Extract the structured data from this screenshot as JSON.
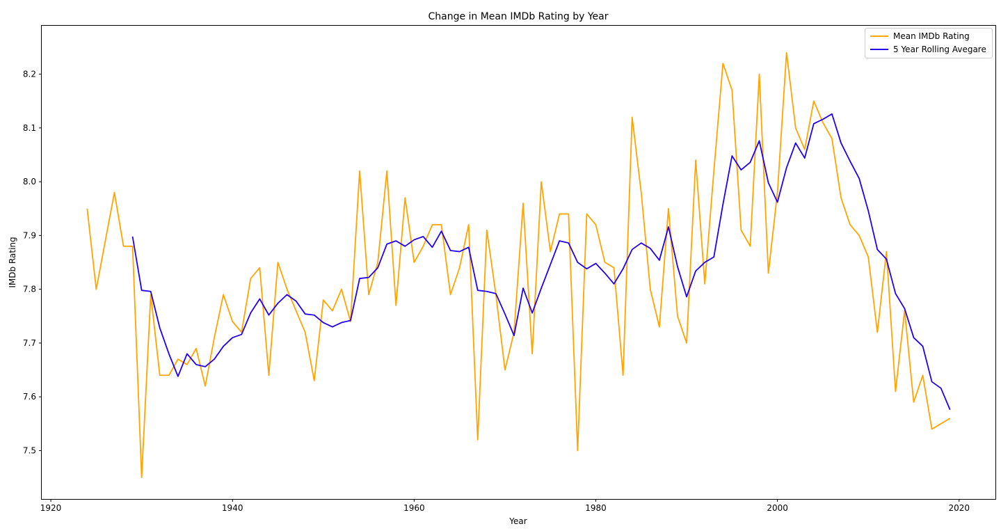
{
  "chart_data": {
    "type": "line",
    "title": "Change in Mean IMDb Rating by Year",
    "xlabel": "Year",
    "ylabel": "IMDb Rating",
    "xlim": [
      1919,
      2024
    ],
    "ylim": [
      7.41,
      8.29
    ],
    "xticks": [
      1920,
      1940,
      1960,
      1980,
      2000,
      2020
    ],
    "yticks": [
      7.5,
      7.6,
      7.7,
      7.8,
      7.9,
      8.0,
      8.1,
      8.2
    ],
    "grid": false,
    "legend_position": "top-right",
    "series": [
      {
        "name": "Mean IMDb Rating",
        "color": "#FFA500",
        "points": [
          [
            1924,
            7.95
          ],
          [
            1925,
            7.8
          ],
          [
            1926,
            7.89
          ],
          [
            1927,
            7.98
          ],
          [
            1928,
            7.88
          ],
          [
            1929,
            7.88
          ],
          [
            1930,
            7.45
          ],
          [
            1931,
            7.79
          ],
          [
            1932,
            7.64
          ],
          [
            1933,
            7.64
          ],
          [
            1934,
            7.67
          ],
          [
            1935,
            7.66
          ],
          [
            1936,
            7.69
          ],
          [
            1937,
            7.62
          ],
          [
            1938,
            7.71
          ],
          [
            1939,
            7.79
          ],
          [
            1940,
            7.74
          ],
          [
            1941,
            7.72
          ],
          [
            1942,
            7.82
          ],
          [
            1943,
            7.84
          ],
          [
            1944,
            7.64
          ],
          [
            1945,
            7.85
          ],
          [
            1946,
            7.8
          ],
          [
            1947,
            7.76
          ],
          [
            1948,
            7.72
          ],
          [
            1949,
            7.63
          ],
          [
            1950,
            7.78
          ],
          [
            1951,
            7.76
          ],
          [
            1952,
            7.8
          ],
          [
            1953,
            7.74
          ],
          [
            1954,
            8.02
          ],
          [
            1955,
            7.79
          ],
          [
            1956,
            7.85
          ],
          [
            1957,
            8.02
          ],
          [
            1958,
            7.77
          ],
          [
            1959,
            7.97
          ],
          [
            1960,
            7.85
          ],
          [
            1961,
            7.88
          ],
          [
            1962,
            7.92
          ],
          [
            1963,
            7.92
          ],
          [
            1964,
            7.79
          ],
          [
            1965,
            7.84
          ],
          [
            1966,
            7.92
          ],
          [
            1967,
            7.52
          ],
          [
            1968,
            7.91
          ],
          [
            1969,
            7.79
          ],
          [
            1970,
            7.65
          ],
          [
            1971,
            7.72
          ],
          [
            1972,
            7.96
          ],
          [
            1973,
            7.68
          ],
          [
            1974,
            8.0
          ],
          [
            1975,
            7.87
          ],
          [
            1976,
            7.94
          ],
          [
            1977,
            7.94
          ],
          [
            1978,
            7.5
          ],
          [
            1979,
            7.94
          ],
          [
            1980,
            7.92
          ],
          [
            1981,
            7.85
          ],
          [
            1982,
            7.84
          ],
          [
            1983,
            7.64
          ],
          [
            1984,
            8.12
          ],
          [
            1985,
            7.98
          ],
          [
            1986,
            7.8
          ],
          [
            1987,
            7.73
          ],
          [
            1988,
            7.95
          ],
          [
            1989,
            7.75
          ],
          [
            1990,
            7.7
          ],
          [
            1991,
            8.04
          ],
          [
            1992,
            7.81
          ],
          [
            1993,
            8.02
          ],
          [
            1994,
            8.22
          ],
          [
            1995,
            8.17
          ],
          [
            1996,
            7.91
          ],
          [
            1997,
            7.88
          ],
          [
            1998,
            8.2
          ],
          [
            1999,
            7.83
          ],
          [
            2000,
            7.98
          ],
          [
            2001,
            8.24
          ],
          [
            2002,
            8.1
          ],
          [
            2003,
            8.06
          ],
          [
            2004,
            8.15
          ],
          [
            2005,
            8.11
          ],
          [
            2006,
            8.08
          ],
          [
            2007,
            7.97
          ],
          [
            2008,
            7.92
          ],
          [
            2009,
            7.9
          ],
          [
            2010,
            7.86
          ],
          [
            2011,
            7.72
          ],
          [
            2012,
            7.87
          ],
          [
            2013,
            7.61
          ],
          [
            2014,
            7.76
          ],
          [
            2015,
            7.59
          ],
          [
            2016,
            7.64
          ],
          [
            2017,
            7.54
          ],
          [
            2019,
            7.56
          ]
        ]
      },
      {
        "name": "5 Year Rolling Avegare",
        "color": "#2200EE",
        "points": [
          [
            1929,
            7.898
          ],
          [
            1930,
            7.798
          ],
          [
            1931,
            7.796
          ],
          [
            1932,
            7.728
          ],
          [
            1933,
            7.68
          ],
          [
            1934,
            7.638
          ],
          [
            1935,
            7.68
          ],
          [
            1936,
            7.66
          ],
          [
            1937,
            7.656
          ],
          [
            1938,
            7.67
          ],
          [
            1939,
            7.694
          ],
          [
            1940,
            7.71
          ],
          [
            1941,
            7.716
          ],
          [
            1942,
            7.756
          ],
          [
            1943,
            7.782
          ],
          [
            1944,
            7.752
          ],
          [
            1945,
            7.774
          ],
          [
            1946,
            7.79
          ],
          [
            1947,
            7.778
          ],
          [
            1948,
            7.754
          ],
          [
            1949,
            7.752
          ],
          [
            1950,
            7.738
          ],
          [
            1951,
            7.73
          ],
          [
            1952,
            7.738
          ],
          [
            1953,
            7.742
          ],
          [
            1954,
            7.82
          ],
          [
            1955,
            7.822
          ],
          [
            1956,
            7.84
          ],
          [
            1957,
            7.884
          ],
          [
            1958,
            7.89
          ],
          [
            1959,
            7.88
          ],
          [
            1960,
            7.892
          ],
          [
            1961,
            7.898
          ],
          [
            1962,
            7.878
          ],
          [
            1963,
            7.908
          ],
          [
            1964,
            7.872
          ],
          [
            1965,
            7.87
          ],
          [
            1966,
            7.878
          ],
          [
            1967,
            7.798
          ],
          [
            1968,
            7.796
          ],
          [
            1969,
            7.792
          ],
          [
            1970,
            7.754
          ],
          [
            1971,
            7.714
          ],
          [
            1972,
            7.802
          ],
          [
            1973,
            7.756
          ],
          [
            1974,
            7.802
          ],
          [
            1975,
            7.846
          ],
          [
            1976,
            7.89
          ],
          [
            1977,
            7.886
          ],
          [
            1978,
            7.85
          ],
          [
            1979,
            7.838
          ],
          [
            1980,
            7.848
          ],
          [
            1981,
            7.83
          ],
          [
            1982,
            7.81
          ],
          [
            1983,
            7.838
          ],
          [
            1984,
            7.874
          ],
          [
            1985,
            7.886
          ],
          [
            1986,
            7.876
          ],
          [
            1987,
            7.854
          ],
          [
            1988,
            7.916
          ],
          [
            1989,
            7.842
          ],
          [
            1990,
            7.786
          ],
          [
            1991,
            7.834
          ],
          [
            1992,
            7.85
          ],
          [
            1993,
            7.86
          ],
          [
            1994,
            7.958
          ],
          [
            1995,
            8.048
          ],
          [
            1996,
            8.022
          ],
          [
            1997,
            8.036
          ],
          [
            1998,
            8.076
          ],
          [
            1999,
            7.998
          ],
          [
            2000,
            7.962
          ],
          [
            2001,
            8.026
          ],
          [
            2002,
            8.072
          ],
          [
            2003,
            8.044
          ],
          [
            2004,
            8.108
          ],
          [
            2005,
            8.116
          ],
          [
            2006,
            8.126
          ],
          [
            2007,
            8.072
          ],
          [
            2008,
            8.038
          ],
          [
            2009,
            8.006
          ],
          [
            2010,
            7.946
          ],
          [
            2011,
            7.874
          ],
          [
            2012,
            7.856
          ],
          [
            2013,
            7.792
          ],
          [
            2014,
            7.764
          ],
          [
            2015,
            7.71
          ],
          [
            2016,
            7.694
          ],
          [
            2017,
            7.628
          ],
          [
            2018,
            7.616
          ],
          [
            2019,
            7.576
          ]
        ]
      }
    ]
  }
}
